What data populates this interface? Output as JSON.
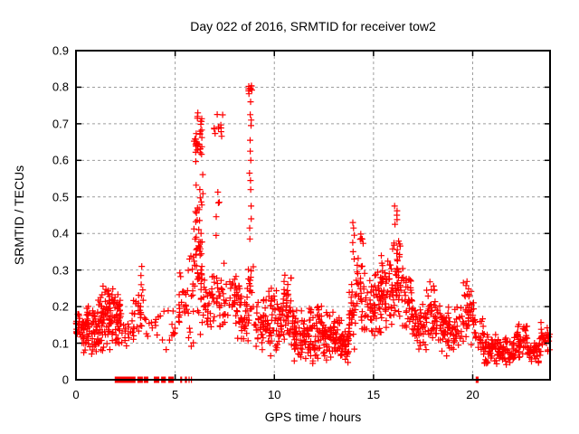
{
  "chart_data": {
    "type": "scatter",
    "title": "Day 022 of 2016, SRMTID for receiver tow2",
    "xlabel": "GPS time / hours",
    "ylabel": "SRMTID / TECUs",
    "xlim": [
      0,
      23.9
    ],
    "ylim": [
      0,
      0.9
    ],
    "xticks": [
      {
        "v": 0,
        "label": "0"
      },
      {
        "v": 5,
        "label": "5"
      },
      {
        "v": 10,
        "label": "10"
      },
      {
        "v": 15,
        "label": "15"
      },
      {
        "v": 20,
        "label": "20"
      }
    ],
    "yticks": [
      {
        "v": 0.0,
        "label": "0"
      },
      {
        "v": 0.1,
        "label": "0.1"
      },
      {
        "v": 0.2,
        "label": "0.2"
      },
      {
        "v": 0.3,
        "label": "0.3"
      },
      {
        "v": 0.4,
        "label": "0.4"
      },
      {
        "v": 0.5,
        "label": "0.5"
      },
      {
        "v": 0.6,
        "label": "0.6"
      },
      {
        "v": 0.7,
        "label": "0.7"
      },
      {
        "v": 0.8,
        "label": "0.8"
      },
      {
        "v": 0.9,
        "label": "0.9"
      }
    ],
    "grid": "dashed",
    "grid_color": "#9e9e9e",
    "border_color": "#000000",
    "marker": {
      "glyph": "plus-icon",
      "color": "#ff0000",
      "size": 7,
      "stroke": 1.2
    },
    "seed": 20160122,
    "bands": [
      [
        0.0,
        0.35,
        0.09,
        0.2,
        25
      ],
      [
        0.3,
        1.05,
        0.05,
        0.22,
        70
      ],
      [
        1.0,
        1.75,
        0.05,
        0.27,
        80
      ],
      [
        1.7,
        2.35,
        0.06,
        0.26,
        60
      ],
      [
        2.35,
        2.7,
        0.08,
        0.17,
        10
      ],
      [
        2.7,
        3.05,
        0.09,
        0.25,
        14
      ],
      [
        3.05,
        3.4,
        0.1,
        0.29,
        14
      ],
      [
        3.4,
        3.9,
        0.1,
        0.2,
        8
      ],
      [
        3.9,
        4.35,
        0.11,
        0.19,
        6
      ],
      [
        4.35,
        5.15,
        0.08,
        0.22,
        12
      ],
      [
        5.15,
        5.6,
        0.13,
        0.31,
        22
      ],
      [
        5.6,
        5.95,
        0.06,
        0.44,
        18
      ],
      [
        5.95,
        6.4,
        0.1,
        0.6,
        55
      ],
      [
        5.95,
        6.35,
        0.58,
        0.73,
        28
      ],
      [
        6.4,
        6.85,
        0.1,
        0.3,
        25
      ],
      [
        6.85,
        7.45,
        0.12,
        0.33,
        30
      ],
      [
        6.95,
        7.4,
        0.64,
        0.74,
        11
      ],
      [
        7.0,
        7.35,
        0.35,
        0.62,
        5
      ],
      [
        7.45,
        8.25,
        0.1,
        0.33,
        40
      ],
      [
        8.25,
        8.65,
        0.08,
        0.26,
        28
      ],
      [
        8.6,
        8.95,
        0.1,
        0.36,
        20
      ],
      [
        8.68,
        8.88,
        0.775,
        0.815,
        9
      ],
      [
        8.95,
        9.7,
        0.06,
        0.24,
        45
      ],
      [
        9.7,
        10.45,
        0.05,
        0.27,
        55
      ],
      [
        10.45,
        10.95,
        0.07,
        0.3,
        45
      ],
      [
        10.95,
        11.8,
        0.04,
        0.2,
        70
      ],
      [
        11.8,
        12.6,
        0.04,
        0.22,
        70
      ],
      [
        12.6,
        13.4,
        0.04,
        0.19,
        70
      ],
      [
        13.4,
        13.75,
        0.03,
        0.14,
        30
      ],
      [
        13.75,
        14.1,
        0.06,
        0.3,
        30
      ],
      [
        14.1,
        14.6,
        0.12,
        0.36,
        30
      ],
      [
        14.3,
        14.5,
        0.37,
        0.42,
        5
      ],
      [
        14.6,
        15.35,
        0.1,
        0.3,
        55
      ],
      [
        15.35,
        15.95,
        0.1,
        0.36,
        55
      ],
      [
        15.95,
        16.35,
        0.14,
        0.42,
        40
      ],
      [
        16.35,
        16.95,
        0.1,
        0.33,
        40
      ],
      [
        16.95,
        17.65,
        0.07,
        0.22,
        48
      ],
      [
        17.65,
        18.25,
        0.08,
        0.28,
        45
      ],
      [
        18.25,
        19.45,
        0.05,
        0.21,
        75
      ],
      [
        19.45,
        20.05,
        0.08,
        0.28,
        40
      ],
      [
        20.05,
        20.55,
        0.06,
        0.18,
        25
      ],
      [
        20.55,
        21.3,
        0.04,
        0.13,
        55
      ],
      [
        21.3,
        22.15,
        0.04,
        0.12,
        55
      ],
      [
        22.15,
        22.75,
        0.05,
        0.16,
        40
      ],
      [
        22.75,
        23.35,
        0.04,
        0.11,
        35
      ],
      [
        23.35,
        23.9,
        0.06,
        0.17,
        30
      ]
    ],
    "columns": [
      {
        "x": 8.79,
        "jitter": 0.06,
        "ys": [
          0.76,
          0.725,
          0.71,
          0.695,
          0.655,
          0.625,
          0.6,
          0.565,
          0.545,
          0.52,
          0.475,
          0.44,
          0.415,
          0.385
        ]
      },
      {
        "x": 14.0,
        "jitter": 0.05,
        "ys": [
          0.43,
          0.415,
          0.395,
          0.375,
          0.35,
          0.33
        ]
      },
      {
        "x": 16.12,
        "jitter": 0.08,
        "ys": [
          0.475,
          0.462,
          0.45,
          0.438,
          0.425
        ]
      },
      {
        "x": 3.28,
        "jitter": 0.04,
        "ys": [
          0.31,
          0.285,
          0.26,
          0.23,
          0.2,
          0.17
        ]
      },
      {
        "x": 6.15,
        "jitter": 0.03,
        "ys": [
          0.73,
          0.72,
          0.715
        ]
      }
    ],
    "zero_runs": [
      [
        1.98,
        2.62
      ],
      [
        2.66,
        3.0
      ],
      [
        3.12,
        3.38
      ],
      [
        3.44,
        3.62
      ],
      [
        3.95,
        4.18
      ],
      [
        4.32,
        4.52
      ],
      [
        4.68,
        4.92
      ],
      [
        5.28,
        5.36
      ],
      [
        5.52,
        5.58
      ],
      [
        5.7,
        5.74
      ],
      [
        5.82,
        5.85
      ],
      [
        20.18,
        20.3
      ]
    ],
    "zero_step": 0.045
  }
}
